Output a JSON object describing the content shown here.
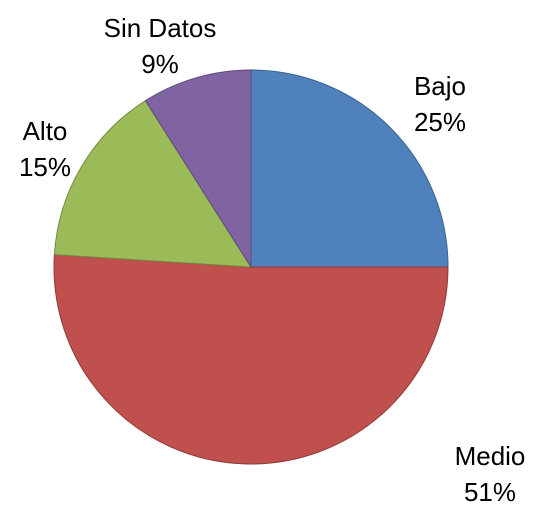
{
  "chart_data": {
    "type": "pie",
    "categories": [
      "Bajo",
      "Medio",
      "Alto",
      "Sin Datos"
    ],
    "values": [
      25,
      51,
      15,
      9
    ],
    "value_labels": [
      "25%",
      "51%",
      "15%",
      "9%"
    ],
    "colors": [
      "#4f81bd",
      "#c0504d",
      "#9bbb59",
      "#8064a2"
    ]
  }
}
